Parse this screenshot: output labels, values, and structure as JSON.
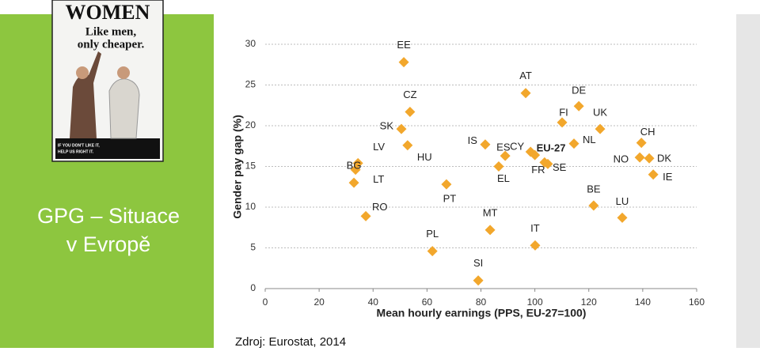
{
  "slide": {
    "title_lines": [
      "GPG – Situace",
      "v Evropě"
    ],
    "source": "Zdroj: Eurostat, 2014",
    "poster": {
      "headline": "WOMEN",
      "lines": [
        "Like men,",
        "only cheaper."
      ],
      "footer": [
        "IF YOU DON'T LIKE IT,",
        "HELP US RIGHT IT."
      ]
    }
  },
  "chart_data": {
    "type": "scatter",
    "xlabel": "Mean hourly earnings (PPS, EU-27=100)",
    "ylabel": "Gender pay gap (%)",
    "color": "#f2a72c",
    "grid": true,
    "xlim": [
      0,
      160
    ],
    "ylim": [
      0,
      30
    ],
    "xticks": [
      0,
      20,
      40,
      60,
      80,
      100,
      120,
      140,
      160
    ],
    "yticks": [
      0,
      5,
      10,
      15,
      20,
      25,
      30
    ],
    "point_labels": [
      "EE",
      "CZ",
      "SK",
      "HU",
      "LV",
      "LT",
      "BG",
      "RO",
      "PL",
      "PT",
      "SI",
      "MT",
      "IS",
      "ES",
      "EL",
      "AT",
      "CY",
      "EU-27",
      "FR",
      "SE",
      "IT",
      "FI",
      "DE",
      "UK",
      "NL",
      "BE",
      "LU",
      "CH",
      "NO",
      "DK",
      "IE"
    ],
    "x": [
      51.4,
      53.7,
      50.5,
      52.8,
      34.4,
      33.5,
      32.9,
      37.3,
      62,
      67.2,
      79,
      83.4,
      81.6,
      89,
      86.6,
      96.6,
      98.4,
      100,
      103.6,
      104.8,
      100.1,
      110.1,
      116.3,
      124.2,
      114.5,
      121.8,
      132.4,
      139.5,
      138.9,
      142.4,
      143.9
    ],
    "values": [
      27.8,
      21.7,
      19.6,
      17.6,
      15.4,
      14.6,
      13.0,
      8.9,
      4.6,
      12.8,
      1.0,
      7.2,
      17.7,
      16.3,
      15.0,
      24.0,
      16.8,
      16.4,
      15.5,
      15.3,
      5.3,
      20.4,
      22.4,
      19.6,
      17.8,
      10.2,
      8.7,
      17.9,
      16.1,
      16.0,
      14.0
    ]
  }
}
